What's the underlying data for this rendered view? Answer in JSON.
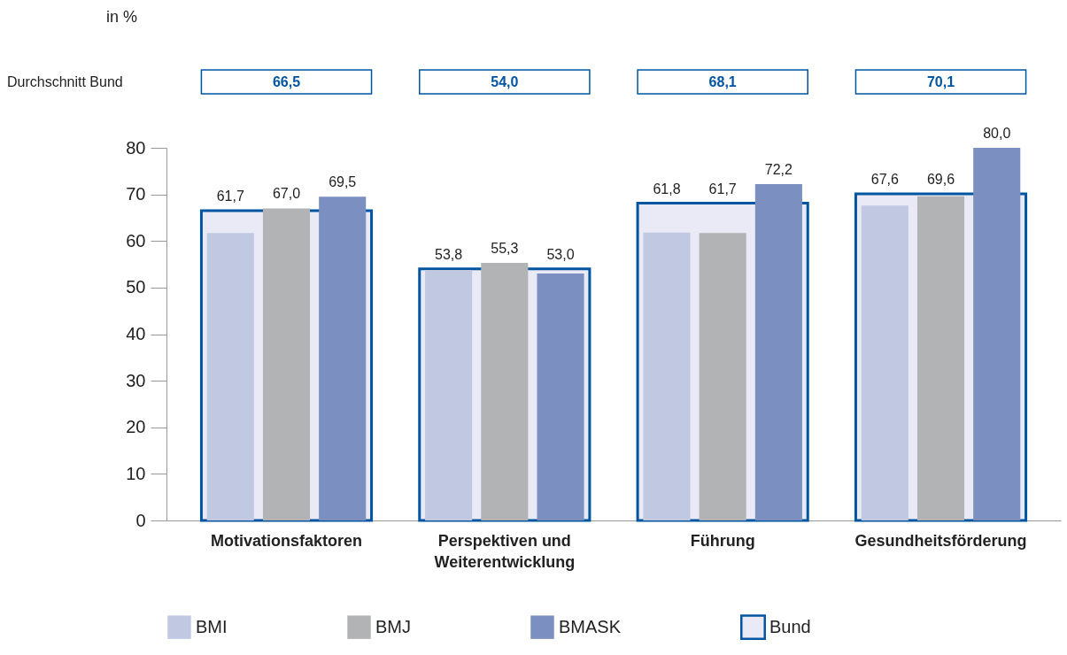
{
  "chart_data": {
    "type": "bar",
    "categories": [
      "Motivationsfaktoren",
      "Perspektiven und Weiterentwicklung",
      "Führung",
      "Gesundheitsförderung"
    ],
    "series": [
      {
        "name": "BMI",
        "color": "#c1c8e2",
        "values": [
          61.7,
          53.8,
          61.8,
          67.6
        ],
        "value_labels": [
          "61,7",
          "53,8",
          "61,8",
          "67,6"
        ]
      },
      {
        "name": "BMJ",
        "color": "#b2b3b5",
        "values": [
          67.0,
          55.3,
          61.7,
          69.6
        ],
        "value_labels": [
          "67,0",
          "55,3",
          "61,7",
          "69,6"
        ]
      },
      {
        "name": "BMASK",
        "color": "#7b8fc1",
        "values": [
          69.5,
          53.0,
          72.2,
          80.0
        ],
        "value_labels": [
          "69,5",
          "53,0",
          "72,2",
          "80,0"
        ]
      },
      {
        "name": "Bund",
        "color": "#e9eaf5",
        "values": [
          66.5,
          54.0,
          68.1,
          70.1
        ],
        "value_labels": [
          "66,5",
          "54,0",
          "68,1",
          "70,1"
        ]
      }
    ],
    "ylim": [
      0,
      80
    ],
    "yticks": [
      0,
      10,
      20,
      30,
      40,
      50,
      60,
      70,
      80
    ],
    "grid": false,
    "legend": "bottom",
    "annotations": [
      "in %",
      "Durchschnitt Bund"
    ]
  }
}
